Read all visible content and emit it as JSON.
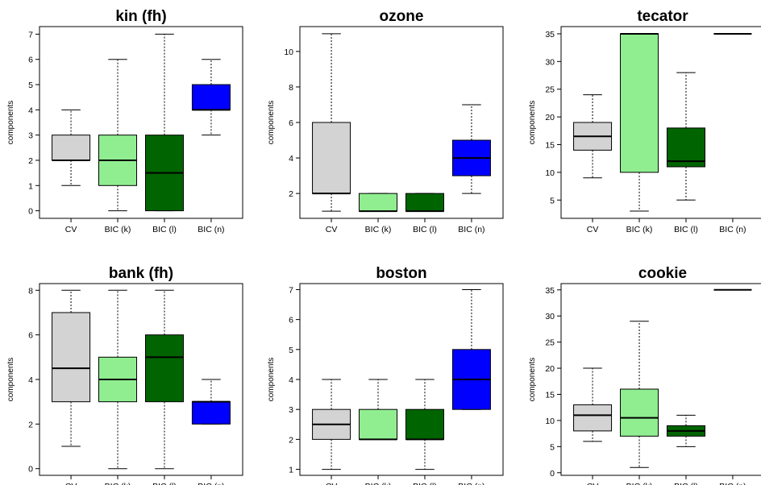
{
  "chart_data": [
    {
      "type": "box",
      "title": "kin (fh)",
      "ylabel": "components",
      "categories": [
        "CV",
        "BIC (k)",
        "BIC (l)",
        "BIC (n)"
      ],
      "colors": [
        "#d3d3d3",
        "#90ee90",
        "#006400",
        "#0000ff"
      ],
      "ylim": [
        -0.3,
        7.3
      ],
      "yticks": [
        0,
        1,
        2,
        3,
        4,
        5,
        6,
        7
      ],
      "boxes": [
        {
          "min": 1,
          "q1": 2,
          "median": 2,
          "q3": 3,
          "max": 4
        },
        {
          "min": 0,
          "q1": 1,
          "median": 2,
          "q3": 3,
          "max": 6
        },
        {
          "min": 0,
          "q1": 0,
          "median": 1.5,
          "q3": 3,
          "max": 7
        },
        {
          "min": 3,
          "q1": 4,
          "median": 4,
          "q3": 5,
          "max": 6
        }
      ]
    },
    {
      "type": "box",
      "title": "ozone",
      "ylabel": "components",
      "categories": [
        "CV",
        "BIC (k)",
        "BIC (l)",
        "BIC (n)"
      ],
      "colors": [
        "#d3d3d3",
        "#90ee90",
        "#006400",
        "#0000ff"
      ],
      "ylim": [
        0.6,
        11.4
      ],
      "yticks": [
        2,
        4,
        6,
        8,
        10
      ],
      "boxes": [
        {
          "min": 1,
          "q1": 2,
          "median": 2,
          "q3": 6,
          "max": 11
        },
        {
          "min": 1,
          "q1": 1,
          "median": 1,
          "q3": 2,
          "max": 2
        },
        {
          "min": 1,
          "q1": 1,
          "median": 1,
          "q3": 2,
          "max": 2
        },
        {
          "min": 2,
          "q1": 3,
          "median": 4,
          "q3": 5,
          "max": 7
        }
      ]
    },
    {
      "type": "box",
      "title": "tecator",
      "ylabel": "components",
      "categories": [
        "CV",
        "BIC (k)",
        "BIC (l)",
        "BIC (n)"
      ],
      "colors": [
        "#d3d3d3",
        "#90ee90",
        "#006400",
        "#0000ff"
      ],
      "ylim": [
        1.7,
        36.3
      ],
      "yticks": [
        5,
        10,
        15,
        20,
        25,
        30,
        35
      ],
      "boxes": [
        {
          "min": 9,
          "q1": 14,
          "median": 16.5,
          "q3": 19,
          "max": 24
        },
        {
          "min": 3,
          "q1": 10,
          "median": 35,
          "q3": 35,
          "max": 35
        },
        {
          "min": 5,
          "q1": 11,
          "median": 12,
          "q3": 18,
          "max": 28
        },
        {
          "min": 35,
          "q1": 35,
          "median": 35,
          "q3": 35,
          "max": 35
        }
      ]
    },
    {
      "type": "box",
      "title": "bank (fh)",
      "ylabel": "components",
      "categories": [
        "CV",
        "BIC (k)",
        "BIC (l)",
        "BIC (n)"
      ],
      "colors": [
        "#d3d3d3",
        "#90ee90",
        "#006400",
        "#0000ff"
      ],
      "ylim": [
        -0.3,
        8.3
      ],
      "yticks": [
        0,
        2,
        4,
        6,
        8
      ],
      "boxes": [
        {
          "min": 1,
          "q1": 3,
          "median": 4.5,
          "q3": 7,
          "max": 8
        },
        {
          "min": 0,
          "q1": 3,
          "median": 4,
          "q3": 5,
          "max": 8
        },
        {
          "min": 0,
          "q1": 3,
          "median": 5,
          "q3": 6,
          "max": 8
        },
        {
          "min": 2,
          "q1": 2,
          "median": 3,
          "q3": 3,
          "max": 4
        }
      ]
    },
    {
      "type": "box",
      "title": "boston",
      "ylabel": "components",
      "categories": [
        "CV",
        "BIC (k)",
        "BIC (l)",
        "BIC (n)"
      ],
      "colors": [
        "#d3d3d3",
        "#90ee90",
        "#006400",
        "#0000ff"
      ],
      "ylim": [
        0.8,
        7.2
      ],
      "yticks": [
        1,
        2,
        3,
        4,
        5,
        6,
        7
      ],
      "boxes": [
        {
          "min": 1,
          "q1": 2,
          "median": 2.5,
          "q3": 3,
          "max": 4
        },
        {
          "min": 2,
          "q1": 2,
          "median": 2,
          "q3": 3,
          "max": 4
        },
        {
          "min": 1,
          "q1": 2,
          "median": 2,
          "q3": 3,
          "max": 4
        },
        {
          "min": 3,
          "q1": 3,
          "median": 4,
          "q3": 5,
          "max": 7
        }
      ]
    },
    {
      "type": "box",
      "title": "cookie",
      "ylabel": "components",
      "categories": [
        "CV",
        "BIC (k)",
        "BIC (l)",
        "BIC (n)"
      ],
      "colors": [
        "#d3d3d3",
        "#90ee90",
        "#006400",
        "#0000ff"
      ],
      "ylim": [
        -0.5,
        36.2
      ],
      "yticks": [
        0,
        5,
        10,
        15,
        20,
        25,
        30,
        35
      ],
      "boxes": [
        {
          "min": 6,
          "q1": 8,
          "median": 11,
          "q3": 13,
          "max": 20
        },
        {
          "min": 1,
          "q1": 7,
          "median": 10.5,
          "q3": 16,
          "max": 29
        },
        {
          "min": 5,
          "q1": 7,
          "median": 8,
          "q3": 9,
          "max": 11
        },
        {
          "min": 35,
          "q1": 35,
          "median": 35,
          "q3": 35,
          "max": 35
        }
      ]
    }
  ]
}
